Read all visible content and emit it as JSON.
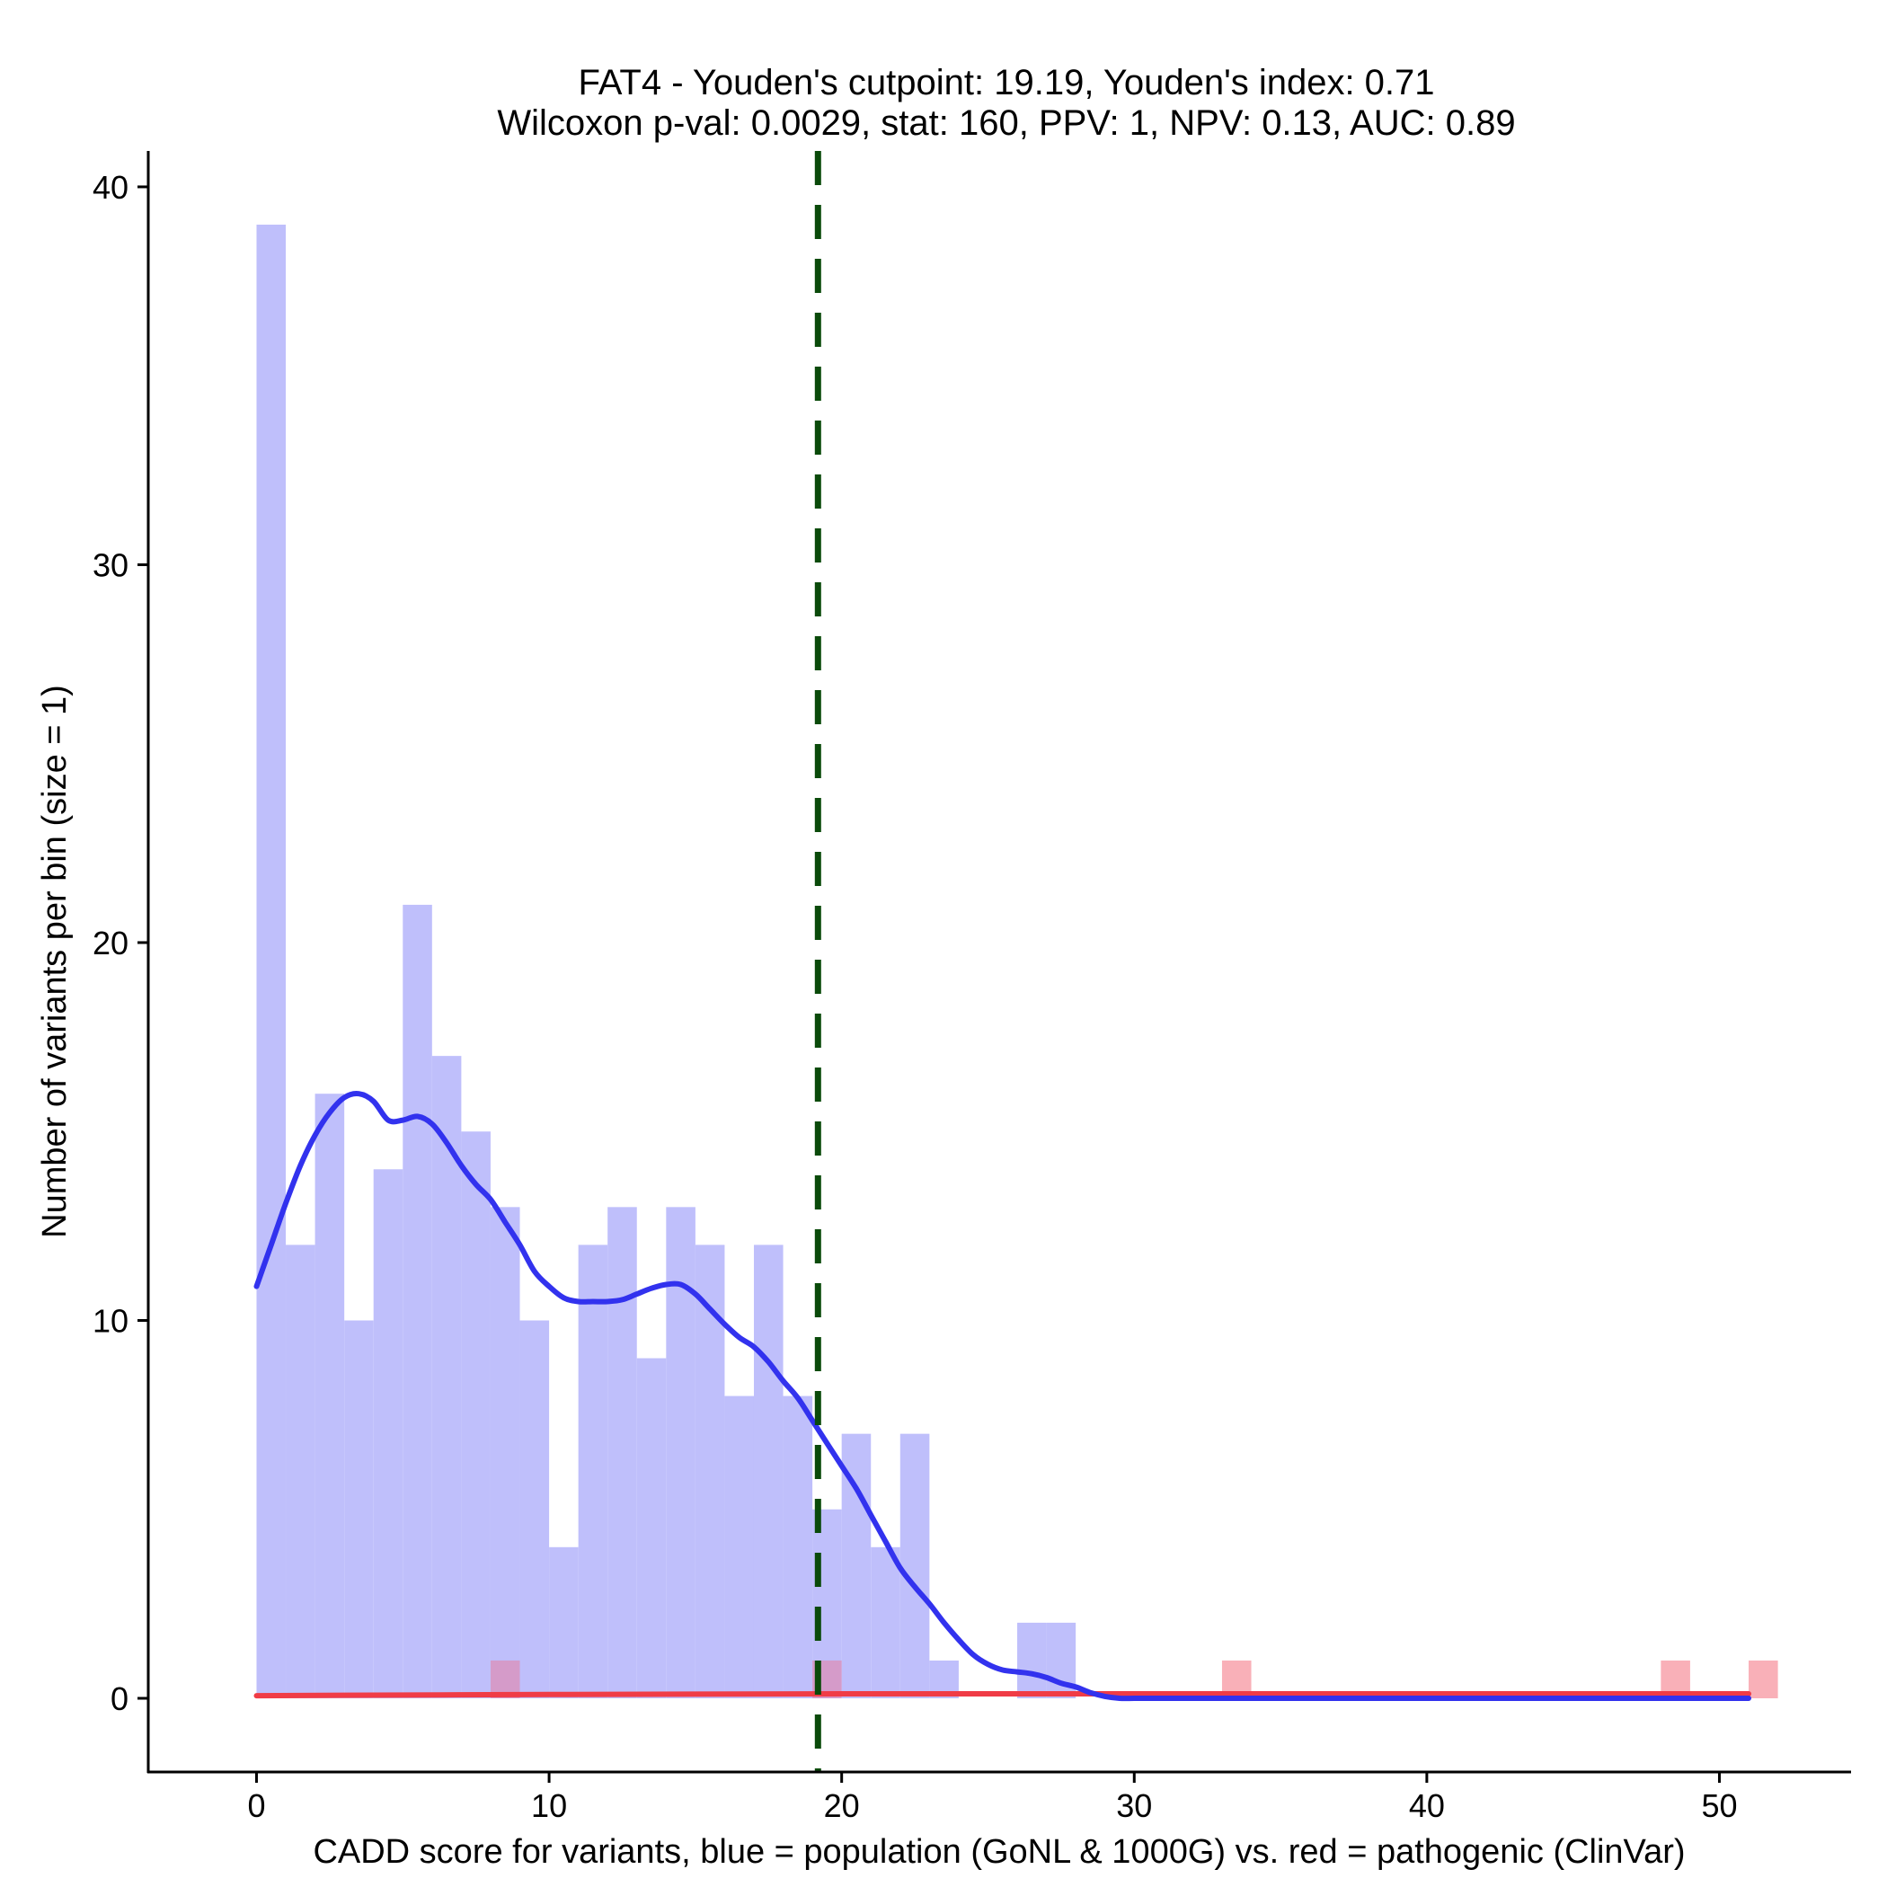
{
  "chart_data": {
    "type": "bar",
    "title_line1": "FAT4 - Youden's cutpoint: 19.19, Youden's index: 0.71",
    "title_line2": "Wilcoxon p-val: 0.0029, stat: 160, PPV: 1, NPV: 0.13, AUC: 0.89",
    "xlabel": "CADD score for variants, blue = population (GoNL & 1000G) vs. red = pathogenic (ClinVar)",
    "ylabel": "Number of variants per bin (size = 1)",
    "xlim": [
      -3.7,
      54.5
    ],
    "ylim": [
      -1.95,
      40.95
    ],
    "xticks": [
      0,
      10,
      20,
      30,
      40,
      50
    ],
    "yticks": [
      0,
      10,
      20,
      30,
      40
    ],
    "bin_width": 1,
    "cutpoint": 19.19,
    "colors": {
      "population_bar": "#bfbffb",
      "pathogenic_bar": "#f9b0b8",
      "overlap_bar": "#d59bc9",
      "population_density": "#3232ee",
      "pathogenic_density": "#f03c46",
      "cutpoint_line": "#0a4a0a",
      "axis": "#000000"
    },
    "series": [
      {
        "name": "population (GoNL & 1000G)",
        "bin_starts": [
          0,
          1,
          2,
          3,
          4,
          5,
          6,
          7,
          8,
          9,
          10,
          11,
          12,
          13,
          14,
          15,
          16,
          17,
          18,
          19,
          20,
          21,
          22,
          23,
          24,
          25,
          26,
          27
        ],
        "values": [
          39,
          12,
          16,
          10,
          14,
          21,
          17,
          15,
          13,
          10,
          4,
          12,
          13,
          9,
          13,
          12,
          8,
          12,
          8,
          5,
          7,
          4,
          7,
          1,
          0,
          0,
          2,
          2
        ]
      },
      {
        "name": "pathogenic (ClinVar)",
        "bin_starts": [
          8,
          19,
          33,
          48,
          51
        ],
        "values": [
          1,
          1,
          1,
          1,
          1
        ]
      }
    ],
    "density_population": {
      "x": [
        0,
        0.5,
        1,
        1.5,
        2,
        2.5,
        3,
        3.5,
        4,
        4.5,
        5,
        5.5,
        6,
        6.5,
        7,
        7.5,
        8,
        8.5,
        9,
        9.5,
        10,
        10.5,
        11,
        11.5,
        12,
        12.5,
        13,
        13.5,
        14,
        14.5,
        15,
        15.5,
        16,
        16.5,
        17,
        17.5,
        18,
        18.5,
        19,
        19.5,
        20,
        20.5,
        21,
        21.5,
        22,
        22.5,
        23,
        23.5,
        24,
        24.5,
        25,
        25.5,
        26,
        26.5,
        27,
        27.5,
        28,
        28.5,
        29,
        29.5,
        30,
        30.5,
        31,
        31.5,
        32,
        33,
        35,
        40,
        45,
        51
      ],
      "y": [
        10.9,
        12,
        13.1,
        14.1,
        14.9,
        15.5,
        15.9,
        16,
        15.8,
        15.3,
        15.3,
        15.4,
        15.2,
        14.7,
        14.1,
        13.6,
        13.2,
        12.6,
        12,
        11.3,
        10.9,
        10.6,
        10.5,
        10.5,
        10.5,
        10.55,
        10.7,
        10.85,
        10.95,
        10.95,
        10.7,
        10.3,
        9.9,
        9.55,
        9.3,
        8.9,
        8.4,
        7.95,
        7.35,
        6.75,
        6.15,
        5.55,
        4.85,
        4.15,
        3.45,
        2.95,
        2.5,
        2.0,
        1.55,
        1.15,
        0.9,
        0.75,
        0.7,
        0.65,
        0.55,
        0.4,
        0.3,
        0.15,
        0.05,
        0,
        0,
        0,
        0,
        0,
        0,
        0,
        0,
        0,
        0,
        0
      ]
    },
    "density_pathogenic": {
      "x": [
        0,
        10,
        20,
        30,
        40,
        51
      ],
      "y": [
        0.07,
        0.1,
        0.12,
        0.12,
        0.12,
        0.12
      ]
    }
  }
}
